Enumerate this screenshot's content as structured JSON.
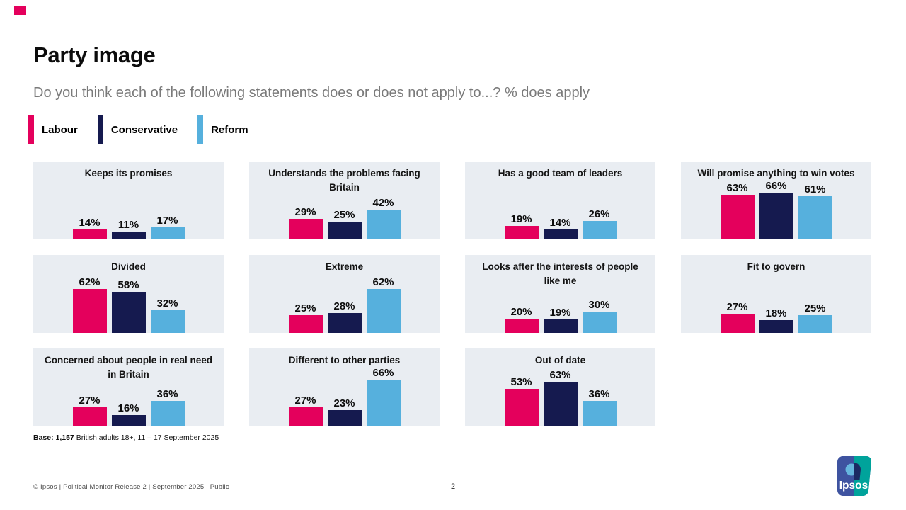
{
  "slide": {
    "title": "Party image",
    "subtitle": "Do you think each of the following statements does or does not apply to...? % does apply",
    "base_label": "Base: 1,157",
    "base_rest": " British adults 18+, 11 – 17 September 2025",
    "footer": "© Ipsos | Political Monitor Release 2 | September 2025 | Public",
    "page_number": "2",
    "logo_text": "Ipsos"
  },
  "colors": {
    "labour": "#e4005c",
    "conservative": "#151a4f",
    "reform": "#56b0dd",
    "panel_background": "#e9edf2",
    "accent_square": "#e4005c",
    "logo_blue": "#3e53a0",
    "logo_teal": "#00a39b"
  },
  "legend": [
    {
      "label": "Labour",
      "color": "#e4005c"
    },
    {
      "label": "Conservative",
      "color": "#151a4f"
    },
    {
      "label": "Reform",
      "color": "#56b0dd"
    }
  ],
  "chart_data": {
    "type": "bar",
    "title": "Party image",
    "question": "Do you think each of the following statements does or does not apply to...? % does apply",
    "unit": "%",
    "series": [
      "Labour",
      "Conservative",
      "Reform"
    ],
    "series_colors": [
      "#e4005c",
      "#151a4f",
      "#56b0dd"
    ],
    "ylim": [
      0,
      100
    ],
    "grid": false,
    "legend_position": "top-left",
    "value_labels_shown": true,
    "panels": [
      {
        "title": "Keeps its promises",
        "values": [
          14,
          11,
          17
        ]
      },
      {
        "title": "Understands the problems facing Britain",
        "values": [
          29,
          25,
          42
        ]
      },
      {
        "title": "Has a good team of leaders",
        "values": [
          19,
          14,
          26
        ]
      },
      {
        "title": "Will promise anything to win votes",
        "values": [
          63,
          66,
          61
        ]
      },
      {
        "title": "Divided",
        "values": [
          62,
          58,
          32
        ]
      },
      {
        "title": "Extreme",
        "values": [
          25,
          28,
          62
        ]
      },
      {
        "title": "Looks after the interests of people like me",
        "values": [
          20,
          19,
          30
        ]
      },
      {
        "title": "Fit to govern",
        "values": [
          27,
          18,
          25
        ]
      },
      {
        "title": "Concerned about people in real need in Britain",
        "values": [
          27,
          16,
          36
        ]
      },
      {
        "title": "Different to other parties",
        "values": [
          27,
          23,
          66
        ]
      },
      {
        "title": "Out of date",
        "values": [
          53,
          63,
          36
        ]
      }
    ]
  }
}
